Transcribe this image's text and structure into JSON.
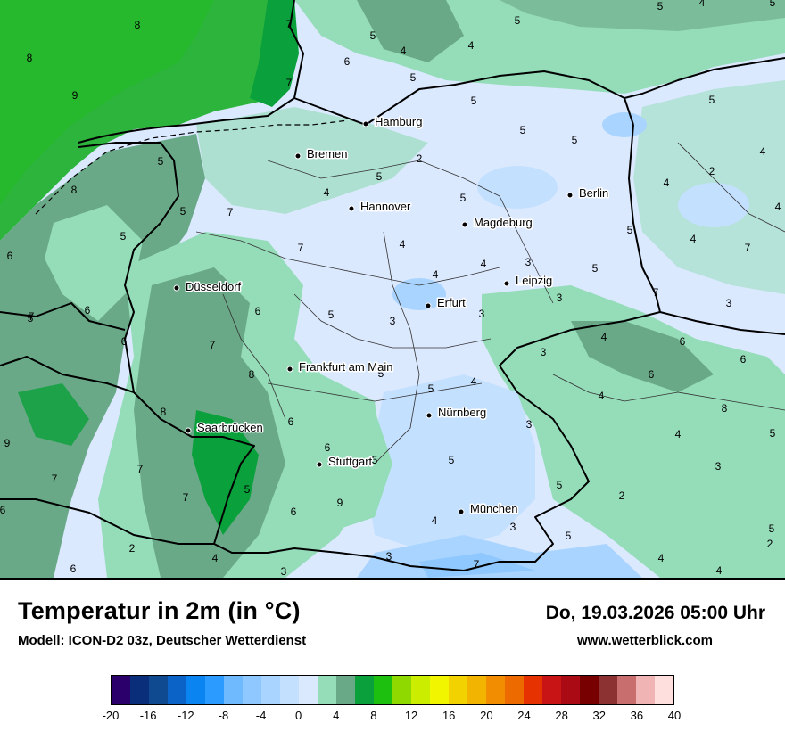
{
  "header": {
    "title": "Temperatur in 2m (in °C)",
    "model": "Modell: ICON-D2 03z, Deutscher Wetterdienst",
    "datetime": "Do, 19.03.2026 05:00 Uhr",
    "website": "www.wetterblick.com"
  },
  "legend": {
    "colors": [
      "#2b006b",
      "#0a2e7a",
      "#0f4a91",
      "#0b63c7",
      "#0a84f0",
      "#2b9bff",
      "#6fb9ff",
      "#8ec8ff",
      "#a9d4ff",
      "#c4e0ff",
      "#dbe9ff",
      "#95dcb9",
      "#6aa987",
      "#0aa03b",
      "#1ec010",
      "#8fd800",
      "#cbee00",
      "#f2f500",
      "#f2d200",
      "#f2b400",
      "#f28c00",
      "#ec6a00",
      "#e63200",
      "#c81414",
      "#aa0a14",
      "#780000",
      "#8c3232",
      "#c86e6e",
      "#f0b4b4",
      "#ffdede"
    ],
    "ticks": [
      "-20",
      "-16",
      "-12",
      "-8",
      "-4",
      "0",
      "4",
      "8",
      "12",
      "16",
      "20",
      "24",
      "28",
      "32",
      "36",
      "40"
    ]
  },
  "cities": [
    {
      "name": "Hamburg"
    },
    {
      "name": "Bremen"
    },
    {
      "name": "Berlin"
    },
    {
      "name": "Hannover"
    },
    {
      "name": "Magdeburg"
    },
    {
      "name": "Leipzig"
    },
    {
      "name": "Düsseldorf"
    },
    {
      "name": "Erfurt"
    },
    {
      "name": "Frankfurt am Main"
    },
    {
      "name": "Nürnberg"
    },
    {
      "name": "Saarbrücken"
    },
    {
      "name": "Stuttgart"
    },
    {
      "name": "München"
    }
  ],
  "temperature_values": [
    "8",
    "8",
    "9",
    "7",
    "7",
    "5",
    "5",
    "5",
    "5",
    "4",
    "6",
    "4",
    "5",
    "5",
    "5",
    "4",
    "5",
    "5",
    "4",
    "2",
    "2",
    "5",
    "4",
    "5",
    "4",
    "4",
    "4",
    "3",
    "3",
    "3",
    "3",
    "8",
    "7",
    "5",
    "7",
    "5",
    "5",
    "7",
    "6",
    "5",
    "6",
    "5",
    "5",
    "4",
    "4",
    "7",
    "4",
    "7",
    "3",
    "4",
    "6",
    "7",
    "6",
    "5",
    "5",
    "4",
    "6",
    "3",
    "4",
    "8",
    "6",
    "5",
    "4",
    "3",
    "5",
    "3",
    "2",
    "5",
    "9",
    "6",
    "8",
    "8",
    "7",
    "7",
    "7",
    "6",
    "5",
    "5",
    "6",
    "9",
    "4",
    "3",
    "5",
    "4",
    "4",
    "5",
    "2",
    "7",
    "3",
    "3",
    "4",
    "2",
    "6",
    "6",
    "6",
    "5"
  ],
  "map_colors": {
    "sea_warm": "#1ea82c",
    "sea_mid": "#0fa035",
    "land_cool": "#dbe9ff",
    "land_mild": "#95dcb9",
    "land_warm": "#6aa987",
    "land_warmest": "#0aa03b",
    "cold_patch": "#a9d4ff",
    "border": "#000000"
  }
}
